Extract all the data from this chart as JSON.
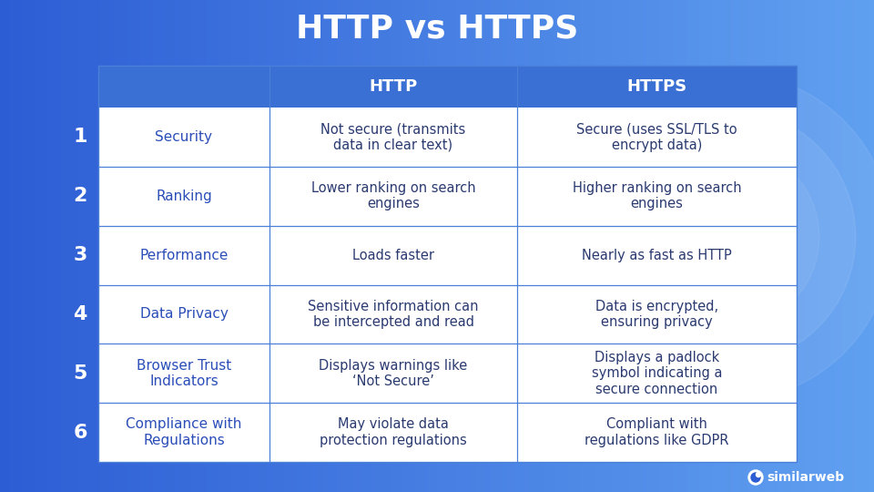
{
  "title": "HTTP vs HTTPS",
  "title_fontsize": 26,
  "title_color": "#ffffff",
  "title_fontweight": "bold",
  "bg_left_color": "#2d5dd4",
  "bg_right_color": "#5599e8",
  "table_bg": "#ffffff",
  "header_bg": "#3a6fd4",
  "header_text_color": "#ffffff",
  "row_divider_color": "#4a80d8",
  "num_col_color": "#2d5dd4",
  "num_text_color": "#ffffff",
  "feature_text_color": "#2a4db8",
  "cell_text_color": "#2a3a70",
  "header_labels": [
    "",
    "HTTP",
    "HTTPS"
  ],
  "rows": [
    {
      "num": "1",
      "feature": "Security",
      "http": "Not secure (transmits\ndata in clear text)",
      "https": "Secure (uses SSL/TLS to\nencrypt data)"
    },
    {
      "num": "2",
      "feature": "Ranking",
      "http": "Lower ranking on search\nengines",
      "https": "Higher ranking on search\nengines"
    },
    {
      "num": "3",
      "feature": "Performance",
      "http": "Loads faster",
      "https": "Nearly as fast as HTTP"
    },
    {
      "num": "4",
      "feature": "Data Privacy",
      "http": "Sensitive information can\nbe intercepted and read",
      "https": "Data is encrypted,\nensuring privacy"
    },
    {
      "num": "5",
      "feature": "Browser Trust\nIndicators",
      "http": "Displays warnings like\n‘Not Secure’",
      "https": "Displays a padlock\nsymbol indicating a\nsecure connection"
    },
    {
      "num": "6",
      "feature": "Compliance with\nRegulations",
      "http": "May violate data\nprotection regulations",
      "https": "Compliant with\nregulations like GDPR"
    }
  ],
  "logo_text": "similarweb",
  "cell_fontsize": 10.5,
  "feature_fontsize": 11,
  "number_fontsize": 16,
  "header_fontsize": 13
}
